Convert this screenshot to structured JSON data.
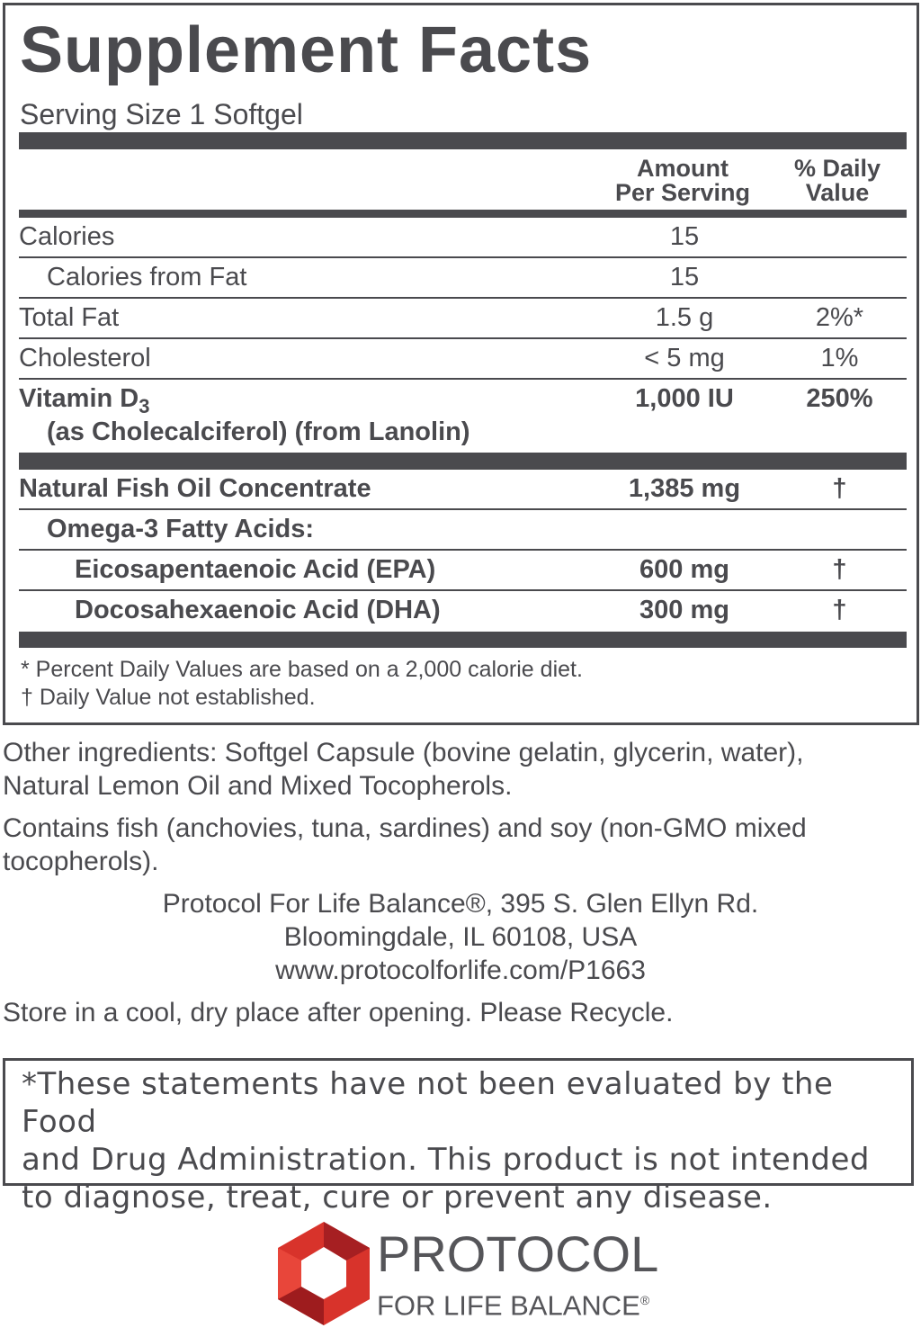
{
  "title": "Supplement Facts",
  "serving_size": "Serving Size 1 Softgel",
  "headers": {
    "amount_1": "Amount",
    "amount_2": "Per Serving",
    "dv_1": "% Daily",
    "dv_2": "Value"
  },
  "rows": [
    {
      "name": "Calories",
      "amount": "15",
      "dv": ""
    },
    {
      "name": "Calories from Fat",
      "amount": "15",
      "dv": ""
    },
    {
      "name": "Total Fat",
      "amount": "1.5 g",
      "dv": "2%*"
    },
    {
      "name": "Cholesterol",
      "amount": "< 5 mg",
      "dv": "1%"
    },
    {
      "name": "Vitamin D",
      "sub": "3",
      "name_2": "(as Cholecalciferol) (from Lanolin)",
      "amount": "1,000 IU",
      "dv": "250%"
    },
    {
      "name": "Natural Fish Oil Concentrate",
      "amount": "1,385 mg",
      "dv": "†"
    },
    {
      "name": "Omega-3 Fatty Acids:",
      "amount": "",
      "dv": ""
    },
    {
      "name": "Eicosapentaenoic Acid (EPA)",
      "amount": "600 mg",
      "dv": "†"
    },
    {
      "name": "Docosahexaenoic Acid (DHA)",
      "amount": "300 mg",
      "dv": "†"
    }
  ],
  "footnotes": [
    "* Percent Daily Values are based on a 2,000 calorie diet.",
    "† Daily Value not established."
  ],
  "other_ingredients": [
    "Other ingredients: Softgel Capsule (bovine gelatin, glycerin, water),",
    "Natural Lemon Oil and Mixed Tocopherols."
  ],
  "allergens": [
    "Contains fish (anchovies, tuna, sardines) and soy (non-GMO mixed",
    "tocopherols)."
  ],
  "address": [
    "Protocol For Life Balance®, 395 S. Glen Ellyn Rd.",
    "Bloomingdale, IL 60108, USA",
    "www.protocolforlife.com/P1663"
  ],
  "storage": "Store in a cool, dry place after opening. Please Recycle.",
  "disclaimer": [
    "*These statements have not been evaluated by the Food",
    "and Drug Administration. This product is not intended",
    "to diagnose, treat, cure or prevent any disease."
  ],
  "logo": {
    "line1": "PROTOCOL",
    "line2": "FOR LIFE BALANCE",
    "reg": "®",
    "colors": {
      "red": "#d8332b",
      "dark_red": "#9e1c1e"
    }
  },
  "colors": {
    "text": "#4a4a4e"
  }
}
